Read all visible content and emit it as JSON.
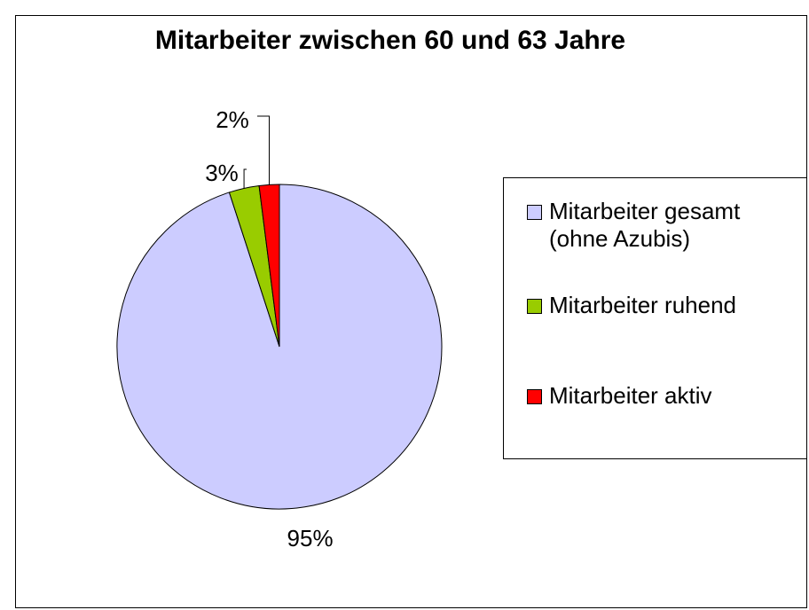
{
  "chart_data": {
    "type": "pie",
    "title": "Mitarbeiter zwischen 60 und 63 Jahre",
    "categories": [
      "Mitarbeiter gesamt (ohne Azubis)",
      "Mitarbeiter ruhend",
      "Mitarbeiter aktiv"
    ],
    "values": [
      95,
      3,
      2
    ],
    "value_labels": [
      "95%",
      "3%",
      "2%"
    ],
    "colors": [
      "#ccccff",
      "#99cc00",
      "#ff0000"
    ],
    "legend": "right"
  }
}
